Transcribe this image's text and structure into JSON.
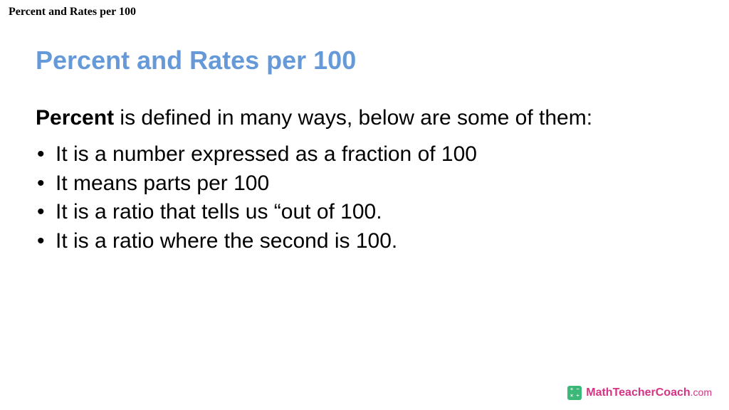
{
  "header": {
    "title": "Percent and Rates per 100"
  },
  "main": {
    "title": "Percent and Rates per 100",
    "title_color": "#6699d8",
    "intro_bold": "Percent",
    "intro_rest": " is defined in many ways, below are some of them:",
    "bullets": [
      "It is a number expressed as a fraction of 100",
      "It means parts per 100",
      "It is a ratio that tells us “out of 100.",
      "It is a ratio where the second is 100."
    ]
  },
  "footer": {
    "brand_part1": "MathTeacher",
    "brand_part2": "Coach",
    "brand_suffix": ".com",
    "icon_bg": "#3cb878",
    "icon_glyphs": [
      "+",
      "−",
      "×",
      "÷"
    ],
    "brand_color": "#d63384"
  },
  "colors": {
    "background": "#ffffff",
    "text": "#000000"
  }
}
